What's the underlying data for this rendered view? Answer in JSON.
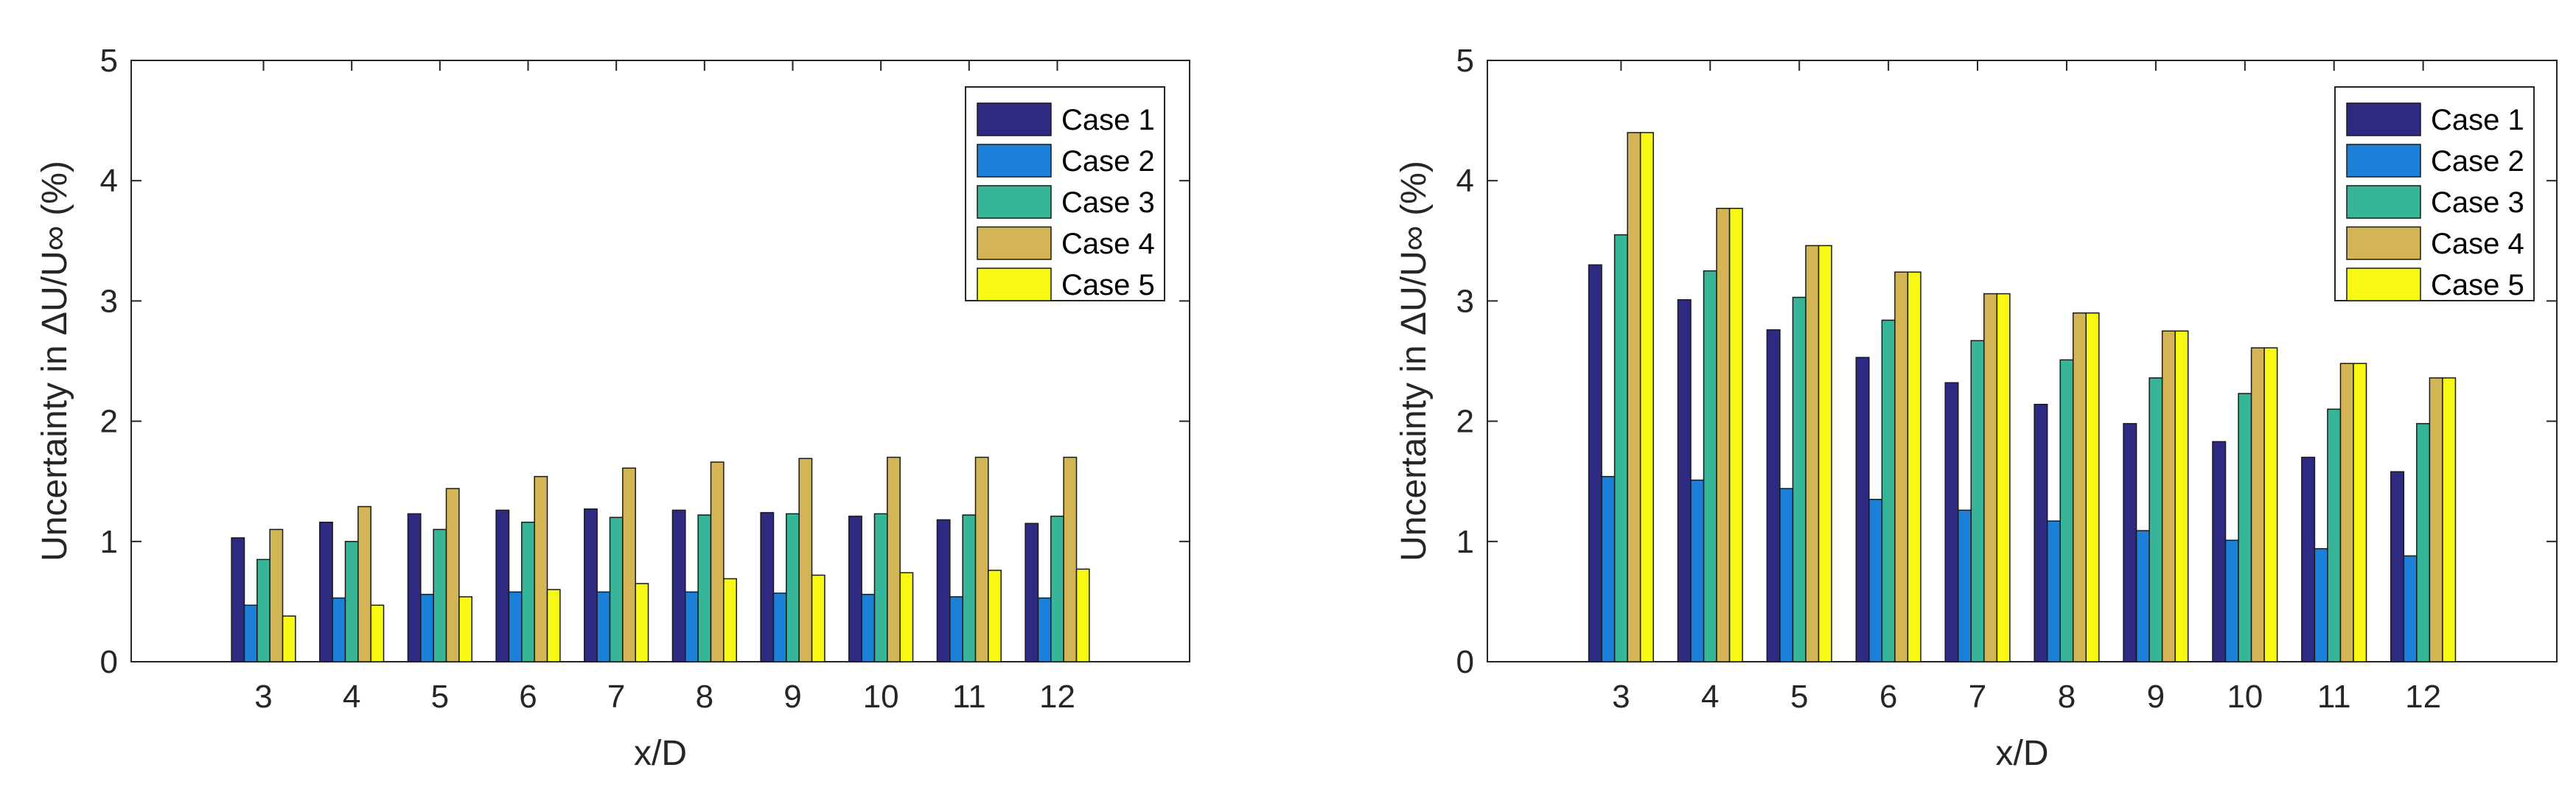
{
  "chart_data": [
    {
      "type": "bar",
      "title": "",
      "xlabel": "x/D",
      "ylabel": "Uncertainty in ΔU/U∞ (%)",
      "categories": [
        "3",
        "4",
        "5",
        "6",
        "7",
        "8",
        "9",
        "10",
        "11",
        "12"
      ],
      "ylim": [
        0,
        5
      ],
      "yticks": [
        "0",
        "1",
        "2",
        "3",
        "4",
        "5"
      ],
      "legend_position": "top-right",
      "series": [
        {
          "name": "Case 1",
          "color": "#2E2A82",
          "values": [
            1.03,
            1.16,
            1.23,
            1.26,
            1.27,
            1.26,
            1.24,
            1.21,
            1.18,
            1.15
          ]
        },
        {
          "name": "Case 2",
          "color": "#1C80D9",
          "values": [
            0.47,
            0.53,
            0.56,
            0.58,
            0.58,
            0.58,
            0.57,
            0.56,
            0.54,
            0.53
          ]
        },
        {
          "name": "Case 3",
          "color": "#36B599",
          "values": [
            0.85,
            1.0,
            1.1,
            1.16,
            1.2,
            1.22,
            1.23,
            1.23,
            1.22,
            1.21
          ]
        },
        {
          "name": "Case 4",
          "color": "#D3B556",
          "values": [
            1.1,
            1.29,
            1.44,
            1.54,
            1.61,
            1.66,
            1.69,
            1.7,
            1.7,
            1.7
          ]
        },
        {
          "name": "Case 5",
          "color": "#F8F815",
          "values": [
            0.38,
            0.47,
            0.54,
            0.6,
            0.65,
            0.69,
            0.72,
            0.74,
            0.76,
            0.77
          ]
        }
      ]
    },
    {
      "type": "bar",
      "title": "",
      "xlabel": "x/D",
      "ylabel": "Uncertainty in ΔU/U∞ (%)",
      "categories": [
        "3",
        "4",
        "5",
        "6",
        "7",
        "8",
        "9",
        "10",
        "11",
        "12"
      ],
      "ylim": [
        0,
        5
      ],
      "yticks": [
        "0",
        "1",
        "2",
        "3",
        "4",
        "5"
      ],
      "legend_position": "top-right",
      "series": [
        {
          "name": "Case 1",
          "color": "#2E2A82",
          "values": [
            3.3,
            3.01,
            2.76,
            2.53,
            2.32,
            2.14,
            1.98,
            1.83,
            1.7,
            1.58
          ]
        },
        {
          "name": "Case 2",
          "color": "#1C80D9",
          "values": [
            1.54,
            1.51,
            1.44,
            1.35,
            1.26,
            1.17,
            1.09,
            1.01,
            0.94,
            0.88
          ]
        },
        {
          "name": "Case 3",
          "color": "#36B599",
          "values": [
            3.55,
            3.25,
            3.03,
            2.84,
            2.67,
            2.51,
            2.36,
            2.23,
            2.1,
            1.98
          ]
        },
        {
          "name": "Case 4",
          "color": "#D3B556",
          "values": [
            4.4,
            3.77,
            3.46,
            3.24,
            3.06,
            2.9,
            2.75,
            2.61,
            2.48,
            2.36
          ]
        },
        {
          "name": "Case 5",
          "color": "#F8F815",
          "values": [
            4.4,
            3.77,
            3.46,
            3.24,
            3.06,
            2.9,
            2.75,
            2.61,
            2.48,
            2.36
          ]
        }
      ]
    }
  ]
}
